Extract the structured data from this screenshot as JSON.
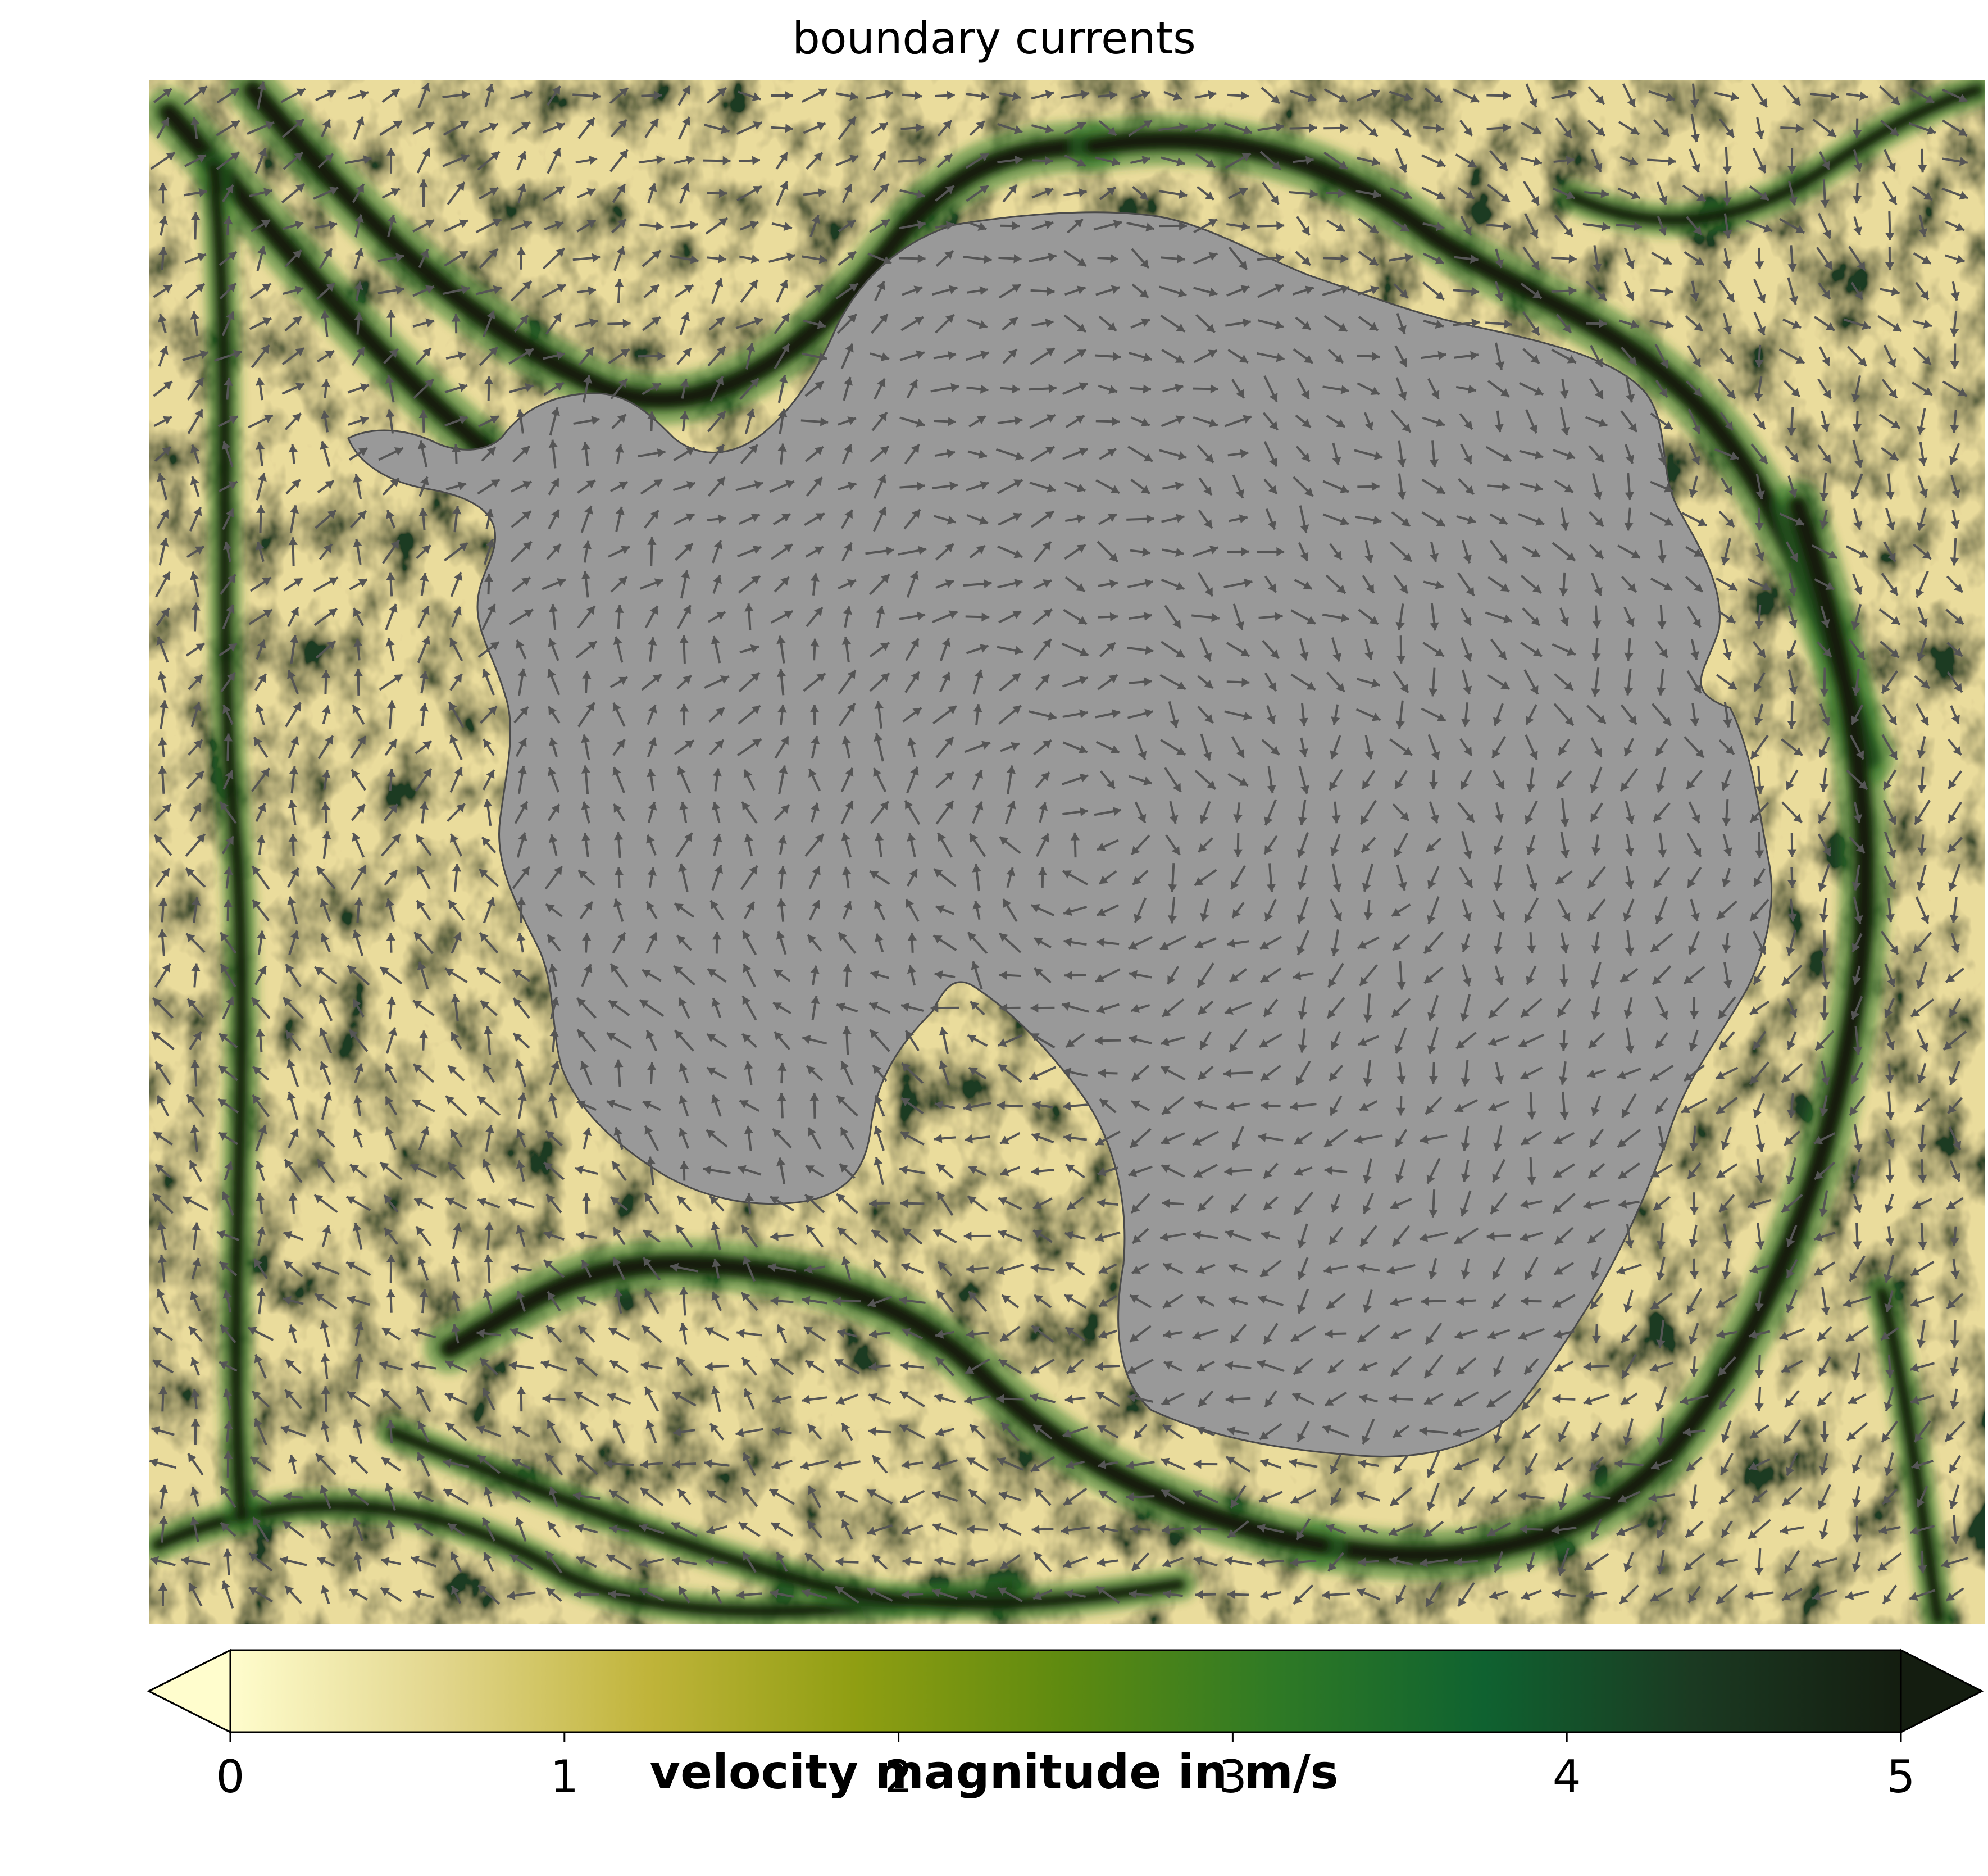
{
  "chart_data": {
    "type": "heatmap",
    "title": "boundary currents",
    "subtype": "vector field (quiver) over velocity-magnitude heatmap, south polar projection",
    "land_color": "#999999",
    "colorbar": {
      "label": "velocity magnitude in m/s",
      "ticks": [
        0,
        1,
        2,
        3,
        4,
        5
      ],
      "range": [
        0,
        5
      ],
      "extend": "both",
      "orientation": "horizontal",
      "colormap": "speed (light yellow to near-black green)",
      "colormap_stops": [
        "#fffdcd",
        "#e2d68d",
        "#c0b43a",
        "#8f9e12",
        "#5e8a10",
        "#2f7a25",
        "#0f6230",
        "#1b3a22",
        "#141d10"
      ]
    },
    "arrow_color": "#555555",
    "grid": false
  }
}
